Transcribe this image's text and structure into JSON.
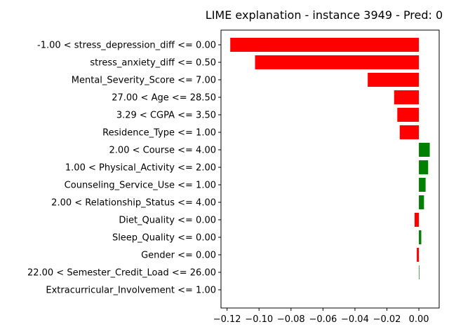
{
  "chart_data": {
    "type": "bar",
    "orientation": "horizontal",
    "title": "LIME explanation - instance 3949 - Pred: 0",
    "xlabel": "",
    "ylabel": "",
    "xlim": [
      -0.1238,
      0.0127
    ],
    "xticks": [
      -0.12,
      -0.1,
      -0.08,
      -0.06,
      -0.04,
      -0.02,
      0.0
    ],
    "xtick_labels": [
      "−0.12",
      "−0.10",
      "−0.08",
      "−0.06",
      "−0.04",
      "−0.02",
      "0.00"
    ],
    "grid": false,
    "colors": {
      "negative": "#ff0000",
      "positive": "#008000"
    },
    "categories": [
      "-1.00 < stress_depression_diff <= 0.00",
      "stress_anxiety_diff <= 0.50",
      "Mental_Severity_Score <= 7.00",
      "27.00 < Age <= 28.50",
      "3.29 < CGPA <= 3.50",
      "Residence_Type <= 1.00",
      "2.00 < Course <= 4.00",
      "1.00 < Physical_Activity <= 2.00",
      "Counseling_Service_Use <= 1.00",
      "2.00 < Relationship_Status <= 4.00",
      "Diet_Quality <= 0.00",
      "Sleep_Quality <= 0.00",
      "Gender <= 0.00",
      "22.00 < Semester_Credit_Load <= 26.00",
      "Extracurricular_Involvement <= 1.00"
    ],
    "values": [
      -0.118,
      -0.1025,
      -0.032,
      -0.0155,
      -0.0135,
      -0.012,
      0.0068,
      0.0058,
      0.0042,
      0.0032,
      -0.0027,
      0.0015,
      -0.0013,
      0.0003,
      0.0
    ]
  }
}
